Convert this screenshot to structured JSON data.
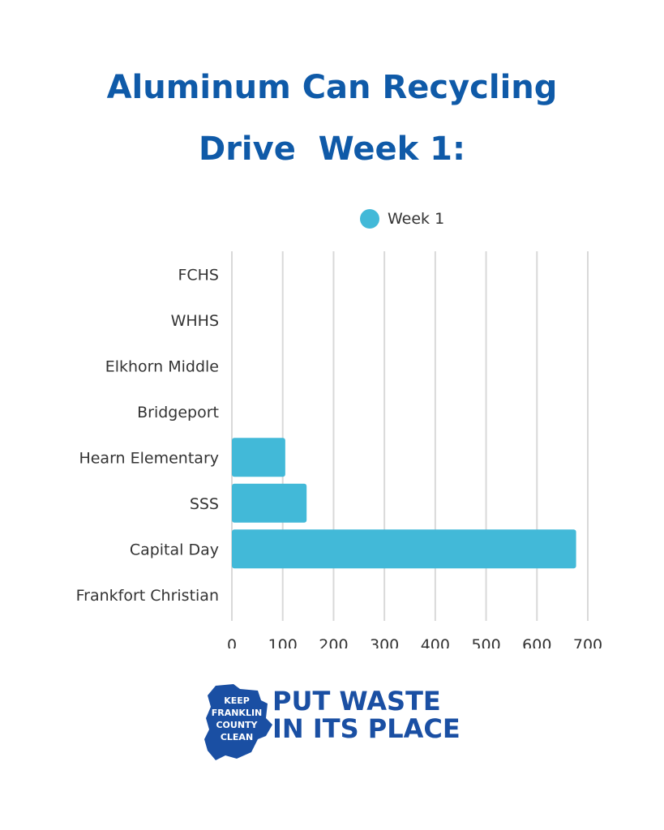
{
  "title": {
    "line1": "Aluminum Can Recycling",
    "line2": "Drive  Week 1:"
  },
  "colors": {
    "title": "#0f5aa8",
    "bar": "#42b9d8",
    "grid": "#d9d9d9",
    "text": "#333333",
    "logo": "#1a4fa3"
  },
  "chart_data": {
    "type": "bar",
    "orientation": "horizontal",
    "categories": [
      "FCHS",
      "WHHS",
      "Elkhorn Middle",
      "Bridgeport",
      "Hearn Elementary",
      "SSS",
      "Capital Day",
      "Frankfort Christian"
    ],
    "series": [
      {
        "name": "Week 1",
        "values": [
          0,
          0,
          0,
          0,
          105,
          147,
          677,
          0
        ]
      }
    ],
    "xlim": [
      0,
      700
    ],
    "xticks": [
      "0",
      "100",
      "200",
      "300",
      "400",
      "500",
      "600",
      "700"
    ],
    "grid": true,
    "legend_position": "top"
  },
  "footer": {
    "badge_lines": [
      "KEEP",
      "FRANKLIN",
      "COUNTY",
      "CLEAN"
    ],
    "slogan_line1": "PUT WASTE",
    "slogan_line2": "IN ITS PLACE",
    "badge_icon": "franklin-county-outline-icon"
  }
}
